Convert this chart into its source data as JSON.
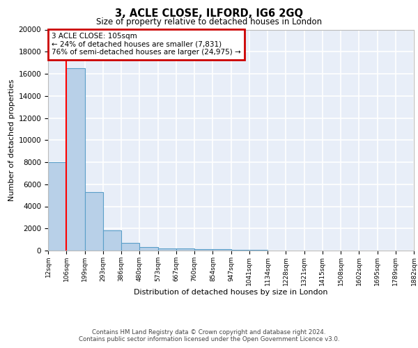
{
  "title": "3, ACLE CLOSE, ILFORD, IG6 2GQ",
  "subtitle": "Size of property relative to detached houses in London",
  "xlabel": "Distribution of detached houses by size in London",
  "ylabel": "Number of detached properties",
  "bar_color": "#b8d0e8",
  "bar_edge_color": "#5a9ec8",
  "background_color": "#e8eef8",
  "grid_color": "#ffffff",
  "bin_edges": [
    12,
    106,
    199,
    293,
    386,
    480,
    573,
    667,
    760,
    854,
    947,
    1041,
    1134,
    1228,
    1321,
    1415,
    1508,
    1602,
    1695,
    1789,
    1882
  ],
  "bar_heights": [
    8000,
    16500,
    5300,
    1800,
    700,
    300,
    210,
    160,
    145,
    100,
    60,
    40,
    30,
    20,
    15,
    12,
    10,
    8,
    7,
    6
  ],
  "red_line_x": 105,
  "annotation_line1": "3 ACLE CLOSE: 105sqm",
  "annotation_line2": "← 24% of detached houses are smaller (7,831)",
  "annotation_line3": "76% of semi-detached houses are larger (24,975) →",
  "annotation_box_color": "#ffffff",
  "annotation_box_edge": "#cc0000",
  "ylim": [
    0,
    20000
  ],
  "yticks": [
    0,
    2000,
    4000,
    6000,
    8000,
    10000,
    12000,
    14000,
    16000,
    18000,
    20000
  ],
  "footer_line1": "Contains HM Land Registry data © Crown copyright and database right 2024.",
  "footer_line2": "Contains public sector information licensed under the Open Government Licence v3.0."
}
